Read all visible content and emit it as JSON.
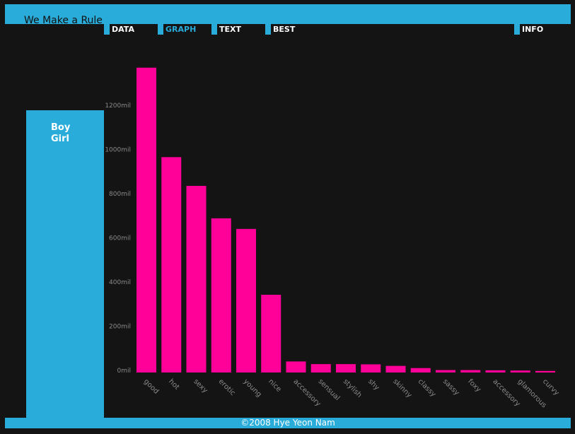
{
  "app": {
    "title": "We Make a Rule"
  },
  "nav": {
    "items": [
      {
        "label": "DATA"
      },
      {
        "label": "GRAPH"
      },
      {
        "label": "TEXT"
      },
      {
        "label": "BEST"
      },
      {
        "label": "INFO"
      }
    ],
    "active": "GRAPH"
  },
  "legend": {
    "items": [
      {
        "label": "Boy"
      },
      {
        "label": "Girl"
      }
    ]
  },
  "footer": {
    "text": "©2008 Hye Yeon Nam"
  },
  "colors": {
    "accent": "#29acd9",
    "bar": "#ff0099",
    "background": "#141414",
    "tick_text": "#8a8a8a"
  },
  "chart_data": {
    "type": "bar",
    "categories": [
      "good",
      "hot",
      "sexy",
      "erotic",
      "young",
      "nice",
      "accessory",
      "sensual",
      "stylish",
      "shy",
      "skinny",
      "classy",
      "sassy",
      "foxy",
      "accessory",
      "glamorous",
      "curvy"
    ],
    "values": [
      1380,
      975,
      845,
      698,
      650,
      352,
      50,
      38,
      38,
      37,
      30,
      20,
      11,
      11,
      10,
      9,
      7
    ],
    "ylim": [
      0,
      1400
    ],
    "yticks": [
      0,
      200,
      400,
      600,
      800,
      1000,
      1200
    ],
    "ytick_suffix": "mil",
    "xlabel": "",
    "ylabel": "",
    "grid": false
  }
}
